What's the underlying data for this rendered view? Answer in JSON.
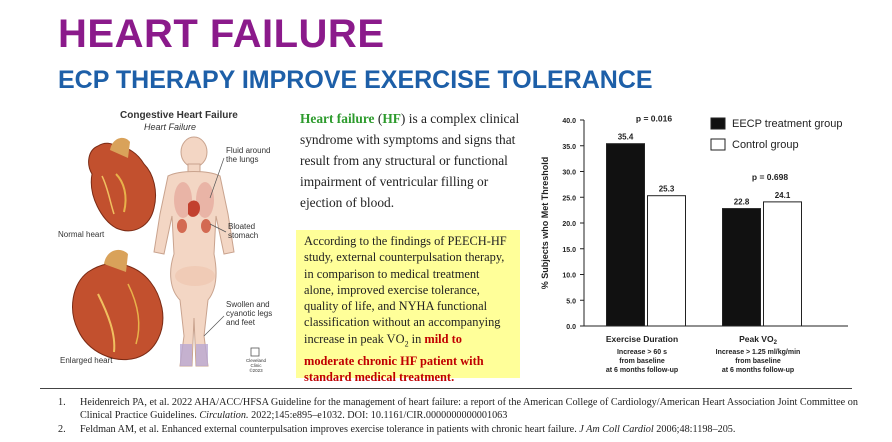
{
  "header": {
    "title": "HEART FAILURE",
    "subtitle": "ECP THERAPY IMPROVE EXERCISE TOLERANCE"
  },
  "illustration": {
    "title": "Congestive Heart Failure",
    "subtitle": "Heart Failure",
    "labels": {
      "normal_heart": "Normal heart",
      "enlarged_heart": "Enlarged heart",
      "fluid_lungs_1": "Fluid around",
      "fluid_lungs_2": "the lungs",
      "bloated_1": "Bloated",
      "bloated_2": "stomach",
      "swollen_1": "Swollen and",
      "swollen_2": "cyanotic legs",
      "swollen_3": "and feet",
      "clinic_1": "Cleveland",
      "clinic_2": "Clinic",
      "clinic_3": "©2023"
    }
  },
  "intro": {
    "term": "Heart failure",
    "paren_open": " (",
    "abbr": "HF",
    "rest": ") is a complex clinical syndrome with symptoms and signs that result from any structural or functional impairment of ventricular filling or ejection of blood."
  },
  "findings": {
    "text_before": "According to the findings of PEECH-HF study, external counterpulsation therapy, in comparison to medical treatment alone, improved exercise tolerance, quality of life, and NYHA functional classification without an accompanying increase in peak VO",
    "sub": "2",
    "text_mid": " in ",
    "highlight": "mild to moderate chronic HF patient with standard medical treatment",
    "text_end": "."
  },
  "chart_data": {
    "type": "bar",
    "ylabel": "% Subjects who Met Threshold",
    "ylim": [
      0,
      40
    ],
    "yticks": [
      "0.0",
      "5.0",
      "10.0",
      "15.0",
      "20.0",
      "25.0",
      "30.0",
      "35.0",
      "40.0"
    ],
    "categories": [
      {
        "title": "Exercise Duration",
        "sub": [
          "Increase > 60 s",
          "from baseline",
          "at 6 months follow-up"
        ],
        "pvalue": "p = 0.016"
      },
      {
        "title": "Peak VO2",
        "sub": [
          "Increase > 1.25 ml/kg/min",
          "from baseline",
          "at 6 months follow-up"
        ],
        "pvalue": "p = 0.698"
      }
    ],
    "series": [
      {
        "name": "EECP treatment group",
        "color": "#111111",
        "values": [
          35.4,
          22.8
        ],
        "labels": [
          "35.4",
          "22.8"
        ]
      },
      {
        "name": "Control group",
        "color": "#ffffff",
        "values": [
          25.3,
          24.1
        ],
        "labels": [
          "25.3",
          "24.1"
        ]
      }
    ],
    "legend_position": "top-right",
    "grid": false
  },
  "references": [
    {
      "num": "1.",
      "text": "Heidenreich PA, et al. 2022 AHA/ACC/HFSA Guideline for the management of heart failure: a report of the American College of Cardiology/American Heart Association Joint Committee on Clinical Practice Guidelines. ",
      "journal": "Circulation.",
      "tail": " 2022;145:e895–e1032. DOI: 10.1161/CIR.0000000000001063"
    },
    {
      "num": "2.",
      "text": "Feldman AM, et al. Enhanced external counterpulsation improves exercise tolerance in patients with chronic heart failure. ",
      "journal": "J Am Coll Cardiol",
      "tail": " 2006;48:1198–205."
    }
  ]
}
